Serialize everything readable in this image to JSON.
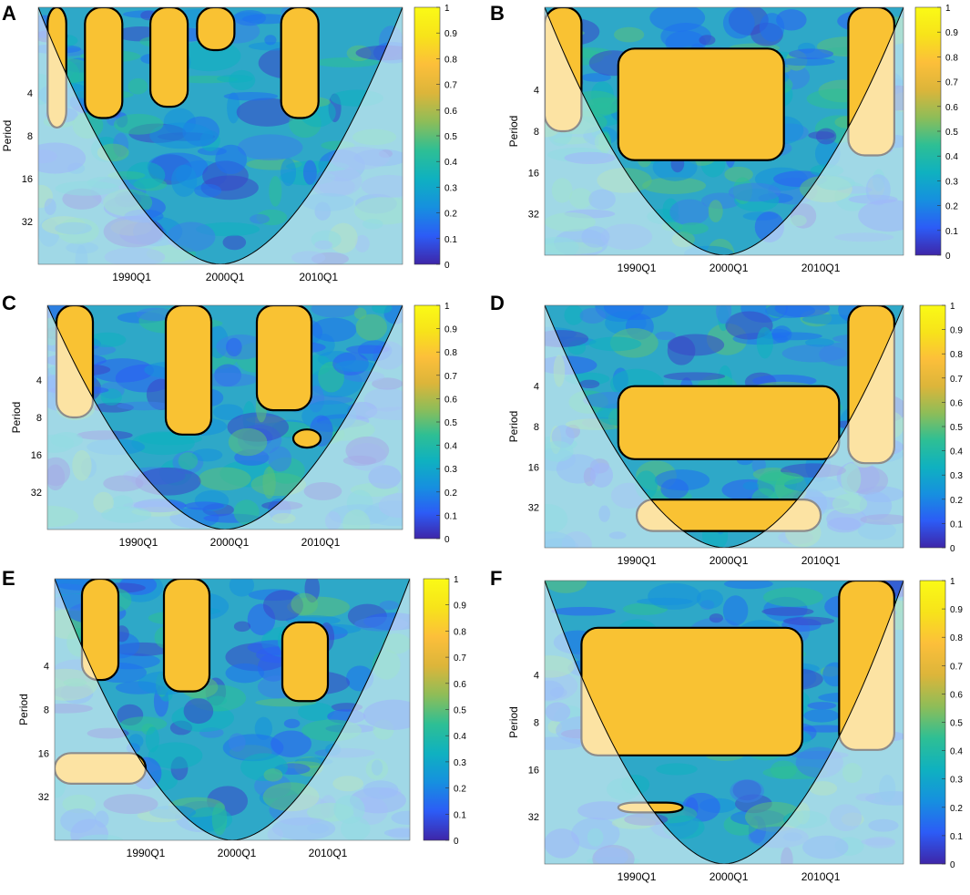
{
  "figure": {
    "colorbar_ticks": [
      "0",
      "0.1",
      "0.2",
      "0.3",
      "0.4",
      "0.5",
      "0.6",
      "0.7",
      "0.8",
      "0.9",
      "1"
    ],
    "colorbar_colors": [
      "#3e26a8",
      "#2c5cf6",
      "#1690df",
      "#0fb1c0",
      "#2ebf94",
      "#8ebd58",
      "#dcb53a",
      "#fcbf3a",
      "#f7e31a",
      "#fafa16"
    ],
    "cone_shade_color": "#ffffff"
  },
  "chart_data": [
    {
      "type": "heatmap",
      "letter": "A",
      "ylabel": "Period",
      "xticks": [
        "1990Q1",
        "2000Q1",
        "2010Q1"
      ],
      "yticks": [
        "4",
        "8",
        "16",
        "32"
      ],
      "ylim": [
        1,
        64
      ],
      "xlim": [
        1980,
        2019
      ],
      "scale": "wavelet coherence 0-1",
      "high_regions": [
        {
          "x": [
            1981,
            1983
          ],
          "y": [
            1,
            7
          ]
        },
        {
          "x": [
            1985,
            1989
          ],
          "y": [
            1,
            6
          ]
        },
        {
          "x": [
            1992,
            1996
          ],
          "y": [
            1,
            5
          ]
        },
        {
          "x": [
            2006,
            2010
          ],
          "y": [
            1,
            6
          ]
        },
        {
          "x": [
            1997,
            2001
          ],
          "y": [
            1,
            2
          ]
        }
      ]
    },
    {
      "type": "heatmap",
      "letter": "B",
      "ylabel": "Period",
      "xticks": [
        "1990Q1",
        "2000Q1",
        "2010Q1"
      ],
      "yticks": [
        "4",
        "8",
        "16",
        "32"
      ],
      "ylim": [
        1,
        64
      ],
      "xlim": [
        1980,
        2019
      ],
      "scale": "wavelet coherence 0-1",
      "high_regions": [
        {
          "x": [
            1988,
            2006
          ],
          "y": [
            2,
            13
          ]
        },
        {
          "x": [
            2013,
            2018
          ],
          "y": [
            1,
            12
          ]
        },
        {
          "x": [
            1980,
            1984
          ],
          "y": [
            1,
            8
          ]
        }
      ]
    },
    {
      "type": "heatmap",
      "letter": "C",
      "ylabel": "Period",
      "xticks": [
        "1990Q1",
        "2000Q1",
        "2010Q1"
      ],
      "yticks": [
        "4",
        "8",
        "16",
        "32"
      ],
      "ylim": [
        1,
        64
      ],
      "xlim": [
        1980,
        2019
      ],
      "scale": "wavelet coherence 0-1",
      "high_regions": [
        {
          "x": [
            1981,
            1985
          ],
          "y": [
            1,
            8
          ]
        },
        {
          "x": [
            1993,
            1998
          ],
          "y": [
            1,
            11
          ]
        },
        {
          "x": [
            2003,
            2009
          ],
          "y": [
            1,
            7
          ]
        },
        {
          "x": [
            2007,
            2010
          ],
          "y": [
            10,
            14
          ]
        }
      ]
    },
    {
      "type": "heatmap",
      "letter": "D",
      "ylabel": "Period",
      "xticks": [
        "1990Q1",
        "2000Q1",
        "2010Q1"
      ],
      "yticks": [
        "4",
        "8",
        "16",
        "32"
      ],
      "ylim": [
        1,
        64
      ],
      "xlim": [
        1980,
        2019
      ],
      "scale": "wavelet coherence 0-1",
      "high_regions": [
        {
          "x": [
            1988,
            2012
          ],
          "y": [
            4,
            14
          ]
        },
        {
          "x": [
            2013,
            2018
          ],
          "y": [
            1,
            15
          ]
        },
        {
          "x": [
            1990,
            2010
          ],
          "y": [
            28,
            48
          ]
        }
      ]
    },
    {
      "type": "heatmap",
      "letter": "E",
      "ylabel": "Period",
      "xticks": [
        "1990Q1",
        "2000Q1",
        "2010Q1"
      ],
      "yticks": [
        "4",
        "8",
        "16",
        "32"
      ],
      "ylim": [
        1,
        64
      ],
      "xlim": [
        1980,
        2019
      ],
      "scale": "wavelet coherence 0-1",
      "high_regions": [
        {
          "x": [
            1983,
            1987
          ],
          "y": [
            1,
            5
          ]
        },
        {
          "x": [
            1992,
            1997
          ],
          "y": [
            1,
            6
          ]
        },
        {
          "x": [
            2005,
            2010
          ],
          "y": [
            2,
            7
          ]
        },
        {
          "x": [
            1980,
            1990
          ],
          "y": [
            16,
            26
          ]
        }
      ]
    },
    {
      "type": "heatmap",
      "letter": "F",
      "ylabel": "Period",
      "xticks": [
        "1990Q1",
        "2000Q1",
        "2010Q1"
      ],
      "yticks": [
        "4",
        "8",
        "16",
        "32"
      ],
      "ylim": [
        1,
        64
      ],
      "xlim": [
        1980,
        2019
      ],
      "scale": "wavelet coherence 0-1",
      "high_regions": [
        {
          "x": [
            1984,
            2008
          ],
          "y": [
            2,
            13
          ]
        },
        {
          "x": [
            2012,
            2018
          ],
          "y": [
            1,
            12
          ]
        },
        {
          "x": [
            1988,
            1995
          ],
          "y": [
            26,
            30
          ]
        }
      ]
    }
  ]
}
